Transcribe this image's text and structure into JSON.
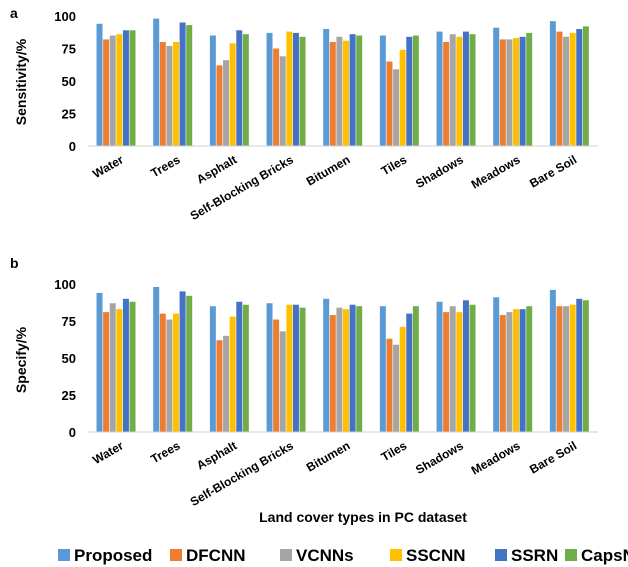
{
  "chart_data": [
    {
      "type": "bar",
      "panel_label": "a",
      "ylabel": "Sensitivity/%",
      "xlabel": "",
      "ylim": [
        0,
        100
      ],
      "yticks": [
        0,
        25,
        50,
        75,
        100
      ],
      "categories": [
        "Water",
        "Trees",
        "Asphalt",
        "Self-Blocking Bricks",
        "Bitumen",
        "Tiles",
        "Shadows",
        "Meadows",
        "Bare Soil"
      ],
      "series": [
        {
          "name": "Proposed",
          "values": [
            94,
            98,
            85,
            87,
            90,
            85,
            88,
            91,
            96
          ]
        },
        {
          "name": "DFCNN",
          "values": [
            82,
            80,
            62,
            75,
            80,
            65,
            80,
            82,
            88
          ]
        },
        {
          "name": "VCNNs",
          "values": [
            85,
            77,
            66,
            69,
            84,
            59,
            86,
            82,
            84
          ]
        },
        {
          "name": "SSCNN",
          "values": [
            86,
            80,
            79,
            88,
            81,
            74,
            84,
            83,
            87
          ]
        },
        {
          "name": "SSRN",
          "values": [
            89,
            95,
            89,
            87,
            86,
            84,
            88,
            84,
            90
          ]
        },
        {
          "name": "CapsNet",
          "values": [
            89,
            93,
            86,
            84,
            85,
            85,
            86,
            87,
            92
          ]
        }
      ],
      "grid": false,
      "legend": "bottom"
    },
    {
      "type": "bar",
      "panel_label": "b",
      "ylabel": "Specify/%",
      "xlabel": "Land cover types in PC dataset",
      "ylim": [
        0,
        100
      ],
      "yticks": [
        0,
        25,
        50,
        75,
        100
      ],
      "categories": [
        "Water",
        "Trees",
        "Asphalt",
        "Self-Blocking Bricks",
        "Bitumen",
        "Tiles",
        "Shadows",
        "Meadows",
        "Bare Soil"
      ],
      "series": [
        {
          "name": "Proposed",
          "values": [
            94,
            98,
            85,
            87,
            90,
            85,
            88,
            91,
            96
          ]
        },
        {
          "name": "DFCNN",
          "values": [
            81,
            80,
            62,
            76,
            79,
            63,
            81,
            79,
            85
          ]
        },
        {
          "name": "VCNNs",
          "values": [
            87,
            76,
            65,
            68,
            84,
            59,
            85,
            81,
            85
          ]
        },
        {
          "name": "SSCNN",
          "values": [
            83,
            80,
            78,
            86,
            83,
            71,
            81,
            83,
            86
          ]
        },
        {
          "name": "SSRN",
          "values": [
            90,
            95,
            88,
            86,
            86,
            80,
            89,
            83,
            90
          ]
        },
        {
          "name": "CapsNet",
          "values": [
            88,
            92,
            86,
            84,
            85,
            85,
            86,
            85,
            89
          ]
        }
      ],
      "grid": false,
      "legend": "bottom"
    }
  ],
  "legend": {
    "items": [
      {
        "label": "Proposed",
        "color": "#5B9BD5"
      },
      {
        "label": "DFCNN",
        "color": "#ED7D31"
      },
      {
        "label": "VCNNs",
        "color": "#A5A5A5"
      },
      {
        "label": "SSCNN",
        "color": "#FFC000"
      },
      {
        "label": "SSRN",
        "color": "#4472C4"
      },
      {
        "label": "CapsNet",
        "color": "#70AD47"
      }
    ]
  }
}
